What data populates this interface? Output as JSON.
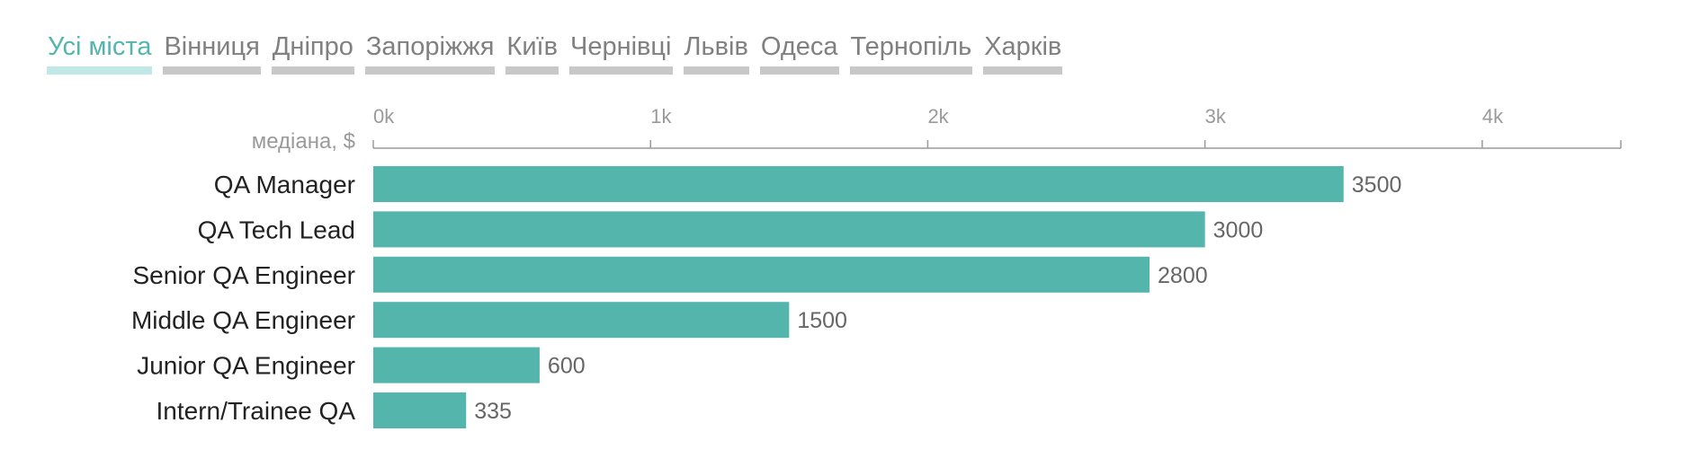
{
  "filters": {
    "active_index": 0,
    "items": [
      "Усі міста",
      "Вінниця",
      "Дніпро",
      "Запоріжжя",
      "Київ",
      "Чернівці",
      "Львів",
      "Одеса",
      "Тернопіль",
      "Харків"
    ]
  },
  "colors": {
    "bar": "#54b5ad",
    "active_tab": "#54b5ad",
    "active_underline": "#bfe8e6",
    "inactive_tab": "#808080",
    "inactive_underline": "#c8c8c8",
    "axis": "#9a9a9a"
  },
  "chart_data": {
    "type": "bar",
    "orientation": "horizontal",
    "xlabel": "медіана, $",
    "xlim": [
      0,
      4500
    ],
    "ticks": [
      0,
      1000,
      2000,
      3000,
      4000
    ],
    "tick_labels": [
      "0k",
      "1k",
      "2k",
      "3k",
      "4k"
    ],
    "grid": false,
    "categories": [
      "QA Manager",
      "QA Tech Lead",
      "Senior QA Engineer",
      "Middle QA Engineer",
      "Junior QA Engineer",
      "Intern/Trainee QA"
    ],
    "values": [
      3500,
      3000,
      2800,
      1500,
      600,
      335
    ]
  }
}
